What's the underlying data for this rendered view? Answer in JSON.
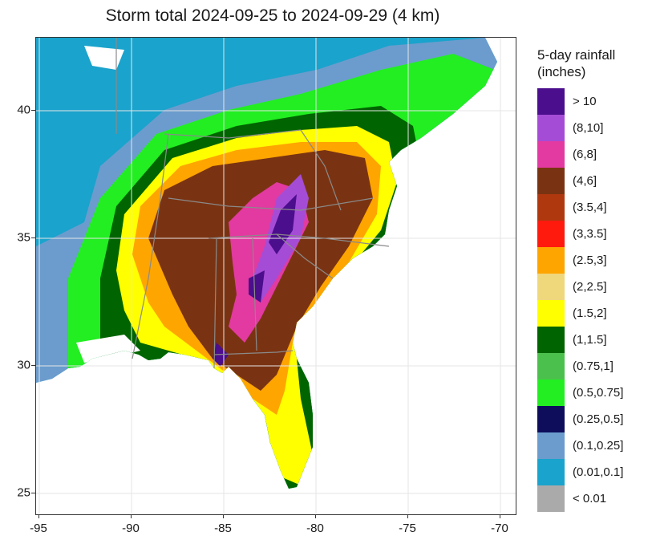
{
  "title": "Storm total 2024-09-25 to 2024-09-29 (4 km)",
  "map": {
    "lon_range": [
      -95.2,
      -69.2
    ],
    "lat_range": [
      24.5,
      43.2
    ],
    "x_ticks": [
      "-95",
      "-90",
      "-85",
      "-80",
      "-75",
      "-70"
    ],
    "y_ticks": [
      "25",
      "30",
      "35",
      "40"
    ],
    "x_tick_values": [
      -95,
      -90,
      -85,
      -80,
      -75,
      -70
    ],
    "y_tick_values": [
      25,
      30,
      35,
      40
    ],
    "grid": true
  },
  "legend": {
    "title": "5-day rainfall\n(inches)",
    "items": [
      {
        "label": "> 10",
        "color": "#4b0e8c"
      },
      {
        "label": "(8,10]",
        "color": "#a54cd6"
      },
      {
        "label": "(6,8]",
        "color": "#e23aa0"
      },
      {
        "label": "(4,6]",
        "color": "#7a3312"
      },
      {
        "label": "(3.5,4]",
        "color": "#b0380f"
      },
      {
        "label": "(3,3.5]",
        "color": "#ff1a0d"
      },
      {
        "label": "(2.5,3]",
        "color": "#ffa500"
      },
      {
        "label": "(2,2.5]",
        "color": "#efd77c"
      },
      {
        "label": "(1.5,2]",
        "color": "#ffff00"
      },
      {
        "label": "(1,1.5]",
        "color": "#006400"
      },
      {
        "label": "(0.75,1]",
        "color": "#4cc04c"
      },
      {
        "label": "(0.5,0.75]",
        "color": "#22ee22"
      },
      {
        "label": "(0.25,0.5]",
        "color": "#0d0d5c"
      },
      {
        "label": "(0.1,0.25]",
        "color": "#6b9ccd"
      },
      {
        "label": "(0.01,0.1]",
        "color": "#1aa3cc"
      },
      {
        "label": "< 0.01",
        "color": "#aaaaaa"
      }
    ]
  }
}
